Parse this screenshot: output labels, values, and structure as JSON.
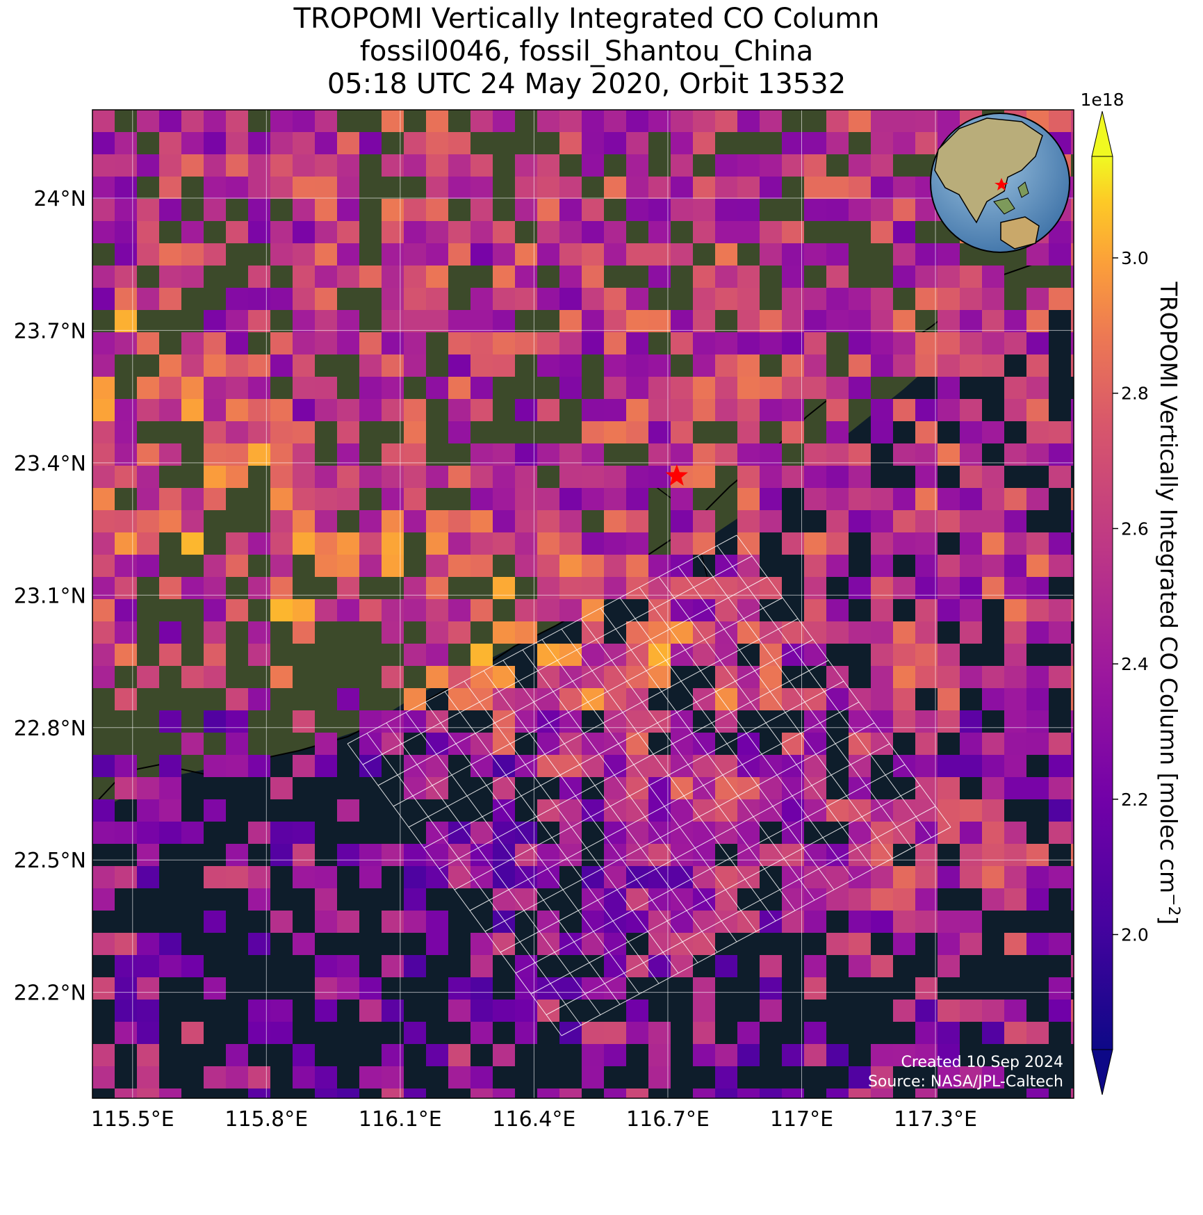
{
  "title": {
    "line1": "TROPOMI Vertically Integrated CO Column",
    "line2": "fossil0046, fossil_Shantou_China",
    "line3": "05:18 UTC 24 May 2020, Orbit 13532"
  },
  "map": {
    "lon_range": [
      115.41,
      117.61
    ],
    "lat_range": [
      21.96,
      24.2
    ],
    "x_ticks": [
      {
        "value": 115.5,
        "label": "115.5°E"
      },
      {
        "value": 115.8,
        "label": "115.8°E"
      },
      {
        "value": 116.1,
        "label": "116.1°E"
      },
      {
        "value": 116.4,
        "label": "116.4°E"
      },
      {
        "value": 116.7,
        "label": "116.7°E"
      },
      {
        "value": 117.0,
        "label": "117°E"
      },
      {
        "value": 117.3,
        "label": "117.3°E"
      }
    ],
    "y_ticks": [
      {
        "value": 24.0,
        "label": "24°N"
      },
      {
        "value": 23.7,
        "label": "23.7°N"
      },
      {
        "value": 23.4,
        "label": "23.4°N"
      },
      {
        "value": 23.1,
        "label": "23.1°N"
      },
      {
        "value": 22.8,
        "label": "22.8°N"
      },
      {
        "value": 22.5,
        "label": "22.5°N"
      },
      {
        "value": 22.2,
        "label": "22.2°N"
      }
    ],
    "target": {
      "lon": 116.72,
      "lat": 23.37,
      "marker": "red-star"
    },
    "grid": true,
    "inset_globe": "top-right",
    "land_color": "#3c4a2a",
    "sea_color": "#0e1d2b"
  },
  "colorbar": {
    "label": "TROPOMI Vertically Integrated CO Column [molec cm",
    "label_exponent": "−2",
    "label_close": "]",
    "multiplier": "1e18",
    "vmin": 1.83,
    "vmax": 3.15,
    "ticks": [
      {
        "value": 2.0,
        "label": "2.0"
      },
      {
        "value": 2.2,
        "label": "2.2"
      },
      {
        "value": 2.4,
        "label": "2.4"
      },
      {
        "value": 2.6,
        "label": "2.6"
      },
      {
        "value": 2.8,
        "label": "2.8"
      },
      {
        "value": 3.0,
        "label": "3.0"
      }
    ],
    "colormap": "plasma",
    "extend": "both"
  },
  "credit": {
    "created": "Created 10 Sep 2024",
    "source": "Source: NASA/JPL-Caltech"
  }
}
